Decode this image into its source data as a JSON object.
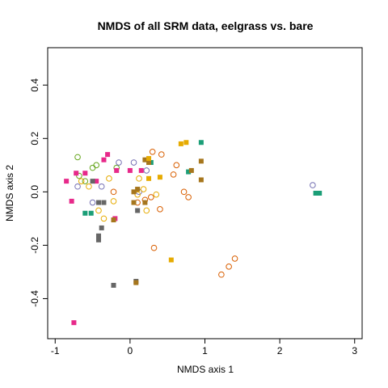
{
  "chart_data": {
    "type": "scatter",
    "title": "NMDS of all SRM data, eelgrass vs. bare",
    "xlabel": "NMDS axis 1",
    "ylabel": "NMDS axis 2",
    "xlim": [
      -1.1,
      3.1
    ],
    "ylim": [
      -0.55,
      0.54
    ],
    "xticks": [
      "-1",
      "0",
      "1",
      "2",
      "3"
    ],
    "yticks": [
      "-0.4",
      "-0.2",
      "0.0",
      "0.2",
      "0.4"
    ],
    "grid": false,
    "legend": "none",
    "series": [
      {
        "marker": "open-circle",
        "color": "#66a61e",
        "points": [
          [
            -0.7,
            0.13
          ],
          [
            -0.45,
            0.1
          ],
          [
            -0.68,
            0.06
          ],
          [
            -0.18,
            0.09
          ],
          [
            -0.5,
            0.09
          ],
          [
            -0.6,
            0.04
          ]
        ]
      },
      {
        "marker": "open-circle",
        "color": "#7570b3",
        "points": [
          [
            -0.5,
            -0.04
          ],
          [
            -0.15,
            0.11
          ],
          [
            0.05,
            0.11
          ],
          [
            0.22,
            0.08
          ],
          [
            -0.38,
            0.02
          ],
          [
            2.44,
            0.025
          ],
          [
            -0.7,
            0.02
          ],
          [
            0.12,
            0.0
          ]
        ]
      },
      {
        "marker": "open-circle",
        "color": "#d95f02",
        "points": [
          [
            0.3,
            0.15
          ],
          [
            0.42,
            0.14
          ],
          [
            0.62,
            0.1
          ],
          [
            0.58,
            0.065
          ],
          [
            0.72,
            0.0
          ],
          [
            0.78,
            -0.02
          ],
          [
            0.2,
            -0.03
          ],
          [
            -0.22,
            0.0
          ],
          [
            0.1,
            -0.04
          ],
          [
            0.28,
            -0.02
          ],
          [
            0.4,
            -0.065
          ],
          [
            1.4,
            -0.25
          ],
          [
            1.32,
            -0.28
          ],
          [
            1.22,
            -0.31
          ],
          [
            0.32,
            -0.21
          ]
        ]
      },
      {
        "marker": "open-circle",
        "color": "#e6ab02",
        "points": [
          [
            -0.65,
            0.04
          ],
          [
            -0.55,
            0.02
          ],
          [
            -0.42,
            -0.07
          ],
          [
            -0.22,
            -0.035
          ],
          [
            0.22,
            -0.07
          ],
          [
            0.35,
            -0.01
          ],
          [
            0.18,
            0.01
          ],
          [
            -0.28,
            0.05
          ],
          [
            0.12,
            0.05
          ],
          [
            -0.35,
            -0.1
          ],
          [
            0.1,
            -0.01
          ]
        ]
      },
      {
        "marker": "filled-square",
        "color": "#e7298a",
        "points": [
          [
            -0.85,
            0.04
          ],
          [
            -0.72,
            0.07
          ],
          [
            -0.6,
            0.07
          ],
          [
            -0.3,
            0.14
          ],
          [
            -0.35,
            0.12
          ],
          [
            -0.18,
            0.08
          ],
          [
            -0.2,
            -0.1
          ],
          [
            0.0,
            0.08
          ],
          [
            0.15,
            0.08
          ],
          [
            -0.78,
            -0.035
          ],
          [
            -0.45,
            0.04
          ],
          [
            -0.75,
            -0.49
          ]
        ]
      },
      {
        "marker": "filled-square",
        "color": "#666666",
        "points": [
          [
            -0.5,
            0.04
          ],
          [
            -0.42,
            -0.04
          ],
          [
            -0.35,
            -0.04
          ],
          [
            -0.42,
            -0.165
          ],
          [
            -0.42,
            -0.18
          ],
          [
            -0.38,
            -0.135
          ],
          [
            0.1,
            -0.07
          ],
          [
            -0.22,
            -0.35
          ],
          [
            0.08,
            -0.335
          ]
        ]
      },
      {
        "marker": "filled-square",
        "color": "#1b9e77",
        "points": [
          [
            -0.6,
            -0.08
          ],
          [
            -0.52,
            -0.08
          ],
          [
            0.95,
            0.185
          ],
          [
            0.78,
            0.075
          ],
          [
            2.48,
            -0.005
          ],
          [
            2.53,
            -0.005
          ],
          [
            0.28,
            0.11
          ]
        ]
      },
      {
        "marker": "filled-square",
        "color": "#a6761d",
        "points": [
          [
            0.05,
            0.0
          ],
          [
            0.05,
            -0.04
          ],
          [
            0.2,
            -0.04
          ],
          [
            0.25,
            0.11
          ],
          [
            0.2,
            0.12
          ],
          [
            0.95,
            0.115
          ],
          [
            0.95,
            0.045
          ],
          [
            0.82,
            0.08
          ],
          [
            0.08,
            -0.34
          ],
          [
            -0.22,
            -0.105
          ],
          [
            0.1,
            0.01
          ]
        ]
      },
      {
        "marker": "filled-square",
        "color": "#e6ab02",
        "points": [
          [
            0.25,
            0.125
          ],
          [
            0.68,
            0.18
          ],
          [
            0.75,
            0.185
          ],
          [
            0.55,
            -0.255
          ],
          [
            0.25,
            0.05
          ],
          [
            0.4,
            0.055
          ]
        ]
      }
    ]
  }
}
